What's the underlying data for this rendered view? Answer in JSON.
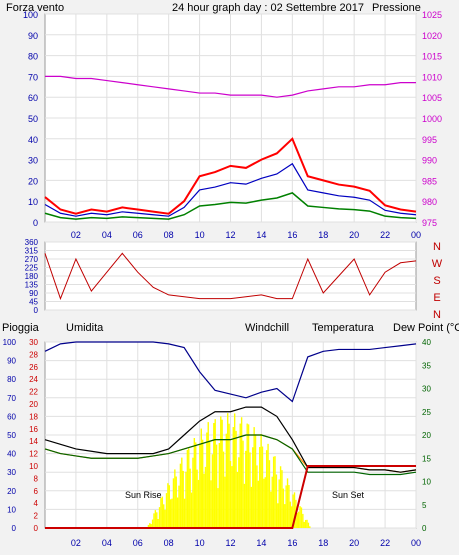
{
  "header": {
    "left": "Forza vento",
    "center": "24 hour graph day : 02 Settembre 2017",
    "right": "Pressione"
  },
  "colors": {
    "wind": "#ff0000",
    "gust": "#0000c0",
    "avg": "#008000",
    "pressure": "#cc00cc",
    "rain": "#cc0000",
    "humidity": "#00008b",
    "windchill": "#ff8c00",
    "temperature": "#000000",
    "dewpoint": "#006400",
    "sun": "#ffff00",
    "dir": "#c00000"
  },
  "panel2": {
    "compass": [
      "N",
      "W",
      "S",
      "E",
      "N"
    ]
  },
  "panel3": {
    "labels": {
      "rain": "Pioggia",
      "humidity": "Umidita",
      "windchill": "Windchill",
      "temperature": "Temperatura",
      "dewpoint": "Dew Point (°C"
    },
    "sunrise": "Sun Rise",
    "sunset": "Sun Set"
  },
  "chart_data": [
    {
      "type": "line",
      "x_ticks": [
        "02",
        "04",
        "06",
        "08",
        "10",
        "12",
        "14",
        "16",
        "18",
        "20",
        "22",
        "00"
      ],
      "y_left_ticks": [
        "0",
        "10",
        "20",
        "30",
        "40",
        "50",
        "60",
        "70",
        "80",
        "90",
        "100"
      ],
      "y_right_ticks": [
        "975",
        "980",
        "985",
        "990",
        "995",
        "1000",
        "1005",
        "1010",
        "1015",
        "1020",
        "1025"
      ],
      "ylim_left": [
        0,
        100
      ],
      "ylim_right": [
        975,
        1025
      ],
      "x": [
        0,
        1,
        2,
        3,
        4,
        5,
        6,
        7,
        8,
        9,
        10,
        11,
        12,
        13,
        14,
        15,
        16,
        17,
        18,
        19,
        20,
        21,
        22,
        23,
        24
      ],
      "series": [
        {
          "name": "Forza vento",
          "values": [
            12,
            6,
            4,
            6,
            5,
            7,
            6,
            5,
            4,
            10,
            22,
            24,
            27,
            26,
            30,
            33,
            40,
            22,
            20,
            18,
            17,
            15,
            8,
            6,
            5
          ]
        },
        {
          "name": "Pressione",
          "values": [
            1010,
            1010,
            1009.5,
            1009.5,
            1009,
            1008.5,
            1008,
            1007.5,
            1007,
            1006.5,
            1006,
            1006,
            1005.5,
            1005.5,
            1005.5,
            1005,
            1005.5,
            1006.5,
            1007,
            1007.5,
            1007.5,
            1008,
            1008,
            1008.5,
            1008.5
          ]
        }
      ]
    },
    {
      "type": "line",
      "x_ticks": [
        "02",
        "04",
        "06",
        "08",
        "10",
        "12",
        "14",
        "16",
        "18",
        "20",
        "22",
        "00"
      ],
      "y_left_ticks": [
        "0",
        "45",
        "90",
        "135",
        "180",
        "225",
        "270",
        "315",
        "360"
      ],
      "ylim": [
        0,
        360
      ],
      "x": [
        0,
        1,
        2,
        3,
        4,
        5,
        6,
        7,
        8,
        9,
        10,
        11,
        12,
        13,
        14,
        15,
        16,
        17,
        18,
        19,
        20,
        21,
        22,
        23,
        24
      ],
      "values": [
        300,
        60,
        270,
        100,
        200,
        300,
        200,
        120,
        80,
        70,
        60,
        60,
        60,
        70,
        80,
        60,
        60,
        270,
        90,
        180,
        270,
        80,
        200,
        250,
        260
      ]
    },
    {
      "type": "line",
      "x_ticks": [
        "02",
        "04",
        "06",
        "08",
        "10",
        "12",
        "14",
        "16",
        "18",
        "20",
        "22",
        "00"
      ],
      "y_left_ticks": [
        "0",
        "2",
        "4",
        "6",
        "8",
        "10",
        "12",
        "14",
        "16",
        "18",
        "20",
        "22",
        "24",
        "26",
        "28",
        "30"
      ],
      "y_left2_ticks": [
        "0",
        "10",
        "20",
        "30",
        "40",
        "50",
        "60",
        "70",
        "80",
        "90",
        "100"
      ],
      "y_right_ticks": [
        "0",
        "5",
        "10",
        "15",
        "20",
        "25",
        "30",
        "35",
        "40"
      ],
      "ylim_right": [
        0,
        40
      ],
      "x": [
        0,
        1,
        2,
        3,
        4,
        5,
        6,
        7,
        8,
        9,
        10,
        11,
        12,
        13,
        14,
        15,
        16,
        17,
        18,
        19,
        20,
        21,
        22,
        23,
        24
      ],
      "series": [
        {
          "name": "Umidita",
          "values": [
            95,
            99,
            100,
            100,
            100,
            100,
            100,
            100,
            99,
            97,
            84,
            74,
            72,
            70,
            73,
            75,
            68,
            92,
            95,
            96,
            96,
            96,
            97,
            98,
            99
          ]
        },
        {
          "name": "Temperatura",
          "values": [
            19,
            18,
            17,
            16.5,
            16,
            16,
            16,
            16,
            17,
            20,
            23,
            25,
            25,
            26,
            26,
            24,
            19,
            13,
            13,
            13,
            13,
            12.5,
            12.5,
            12,
            12.5
          ]
        },
        {
          "name": "Dew Point (°C",
          "values": [
            17,
            16,
            15.5,
            15,
            15,
            15,
            15,
            15.5,
            16,
            17,
            18,
            19,
            19,
            20,
            20,
            19,
            17,
            12,
            12,
            12,
            12,
            11.5,
            11.5,
            11.5,
            12
          ]
        },
        {
          "name": "Windchill",
          "values": [
            17,
            16,
            15.5,
            15,
            15,
            15,
            15,
            15.5,
            16,
            17,
            18,
            19,
            19,
            20,
            20,
            19,
            17,
            13,
            13,
            13,
            13,
            12.5,
            12.5,
            12,
            12.5
          ]
        },
        {
          "name": "Pioggia",
          "values": [
            0,
            0,
            0,
            0,
            0,
            0,
            0,
            0,
            0,
            0,
            0,
            0,
            0,
            0,
            0,
            0,
            0,
            10,
            10,
            10,
            10,
            10,
            10,
            10,
            10
          ]
        }
      ]
    }
  ]
}
